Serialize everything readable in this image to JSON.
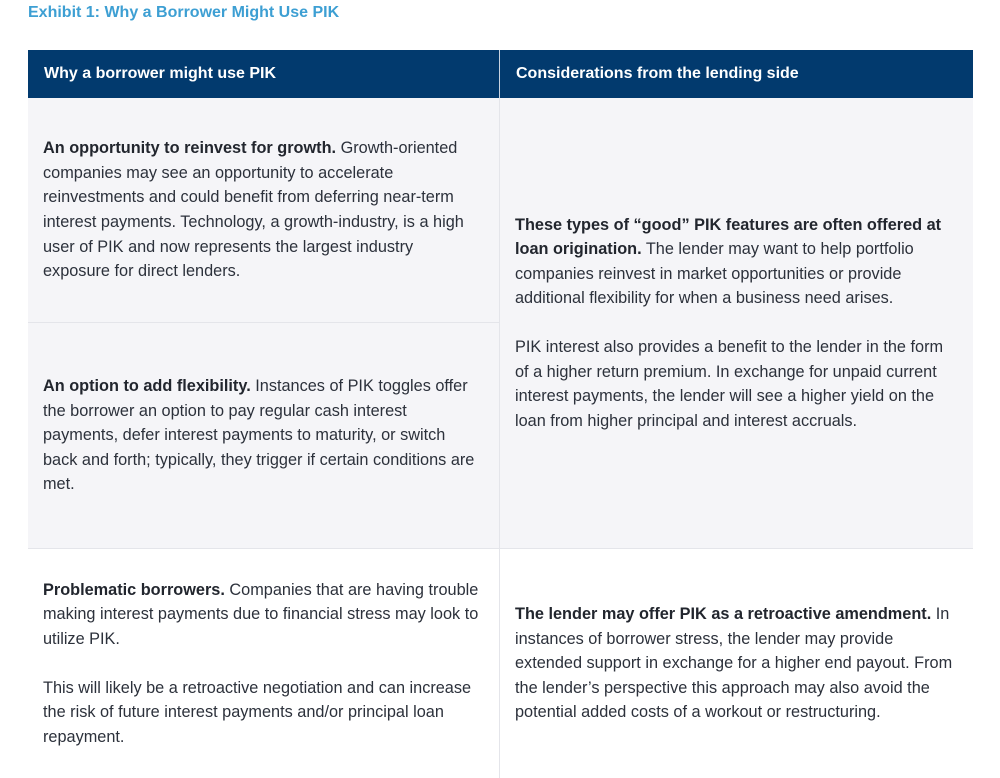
{
  "title": "Exhibit 1: Why a Borrower Might Use PIK",
  "colors": {
    "title": "#3d9fd3",
    "header_bg": "#023a6e",
    "shaded_row": "#f5f5f8"
  },
  "headers": [
    "Why a borrower might use PIK",
    "Considerations from the lending side"
  ],
  "rows": [
    {
      "bold": "An opportunity to reinvest for growth.",
      "text": " Growth-oriented companies may see an opportunity to accelerate reinvestments and could benefit from deferring near-term interest payments. Technology, a growth-industry, is a high user of PIK and now represents the largest industry exposure for direct lenders."
    },
    {
      "bold": "An option to add flexibility.",
      "text": " Instances of PIK toggles offer the borrower an option to pay regular cash interest payments, defer interest payments to maturity, or switch back and forth; typically, they trigger if certain conditions are met."
    },
    {
      "bold": "Problematic borrowers.",
      "text": " Companies that are having trouble making interest payments due to financial stress may look to utilize PIK.",
      "text2": "This will likely be a retroactive negotiation and can increase the risk of future interest payments and/or principal loan repayment."
    }
  ],
  "lending": [
    {
      "bold": "These types of “good” PIK features are often offered at loan origination.",
      "text": " The lender may want to help portfolio companies reinvest in market opportunities or provide additional flexibility for when a business need arises.",
      "text2": "PIK interest also provides a benefit to the lender in the form of a higher return premium. In exchange for unpaid current interest payments, the lender will see a higher yield on the loan from higher principal and interest accruals."
    },
    {
      "bold": "The lender may offer PIK as a retroactive amendment.",
      "text": " In instances of borrower stress, the lender may provide extended support in exchange for a higher end payout. From the lender’s perspective this approach may also avoid the potential added costs of a workout or restructuring."
    }
  ]
}
